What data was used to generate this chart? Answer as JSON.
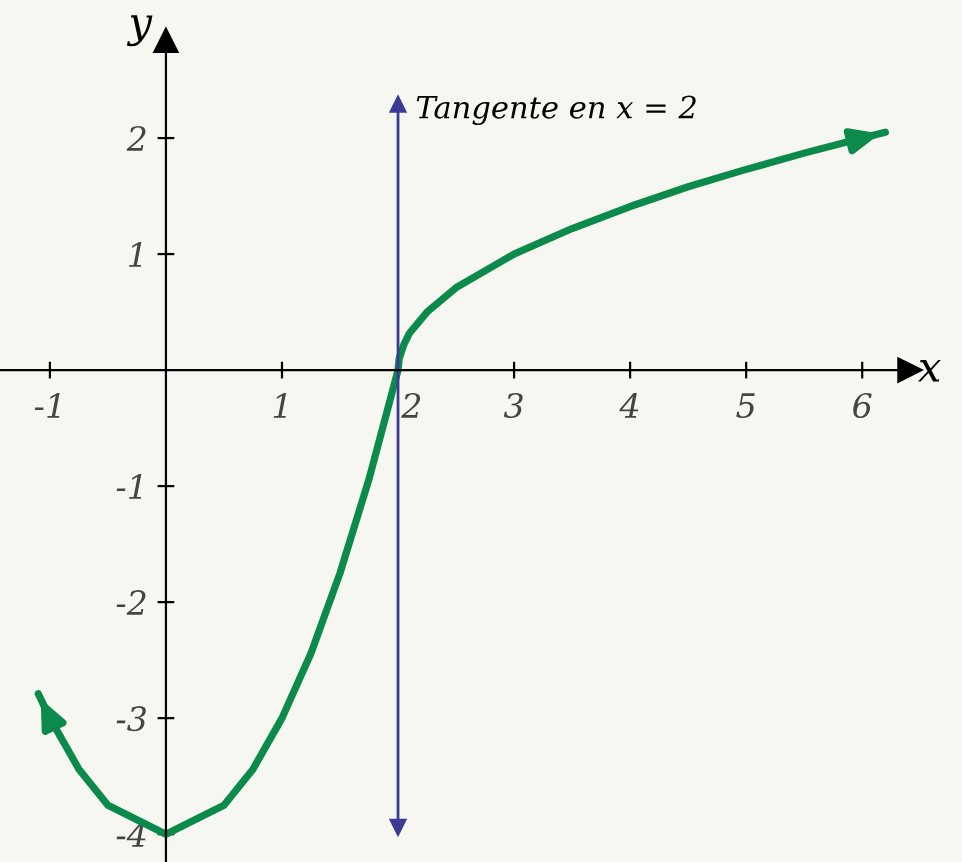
{
  "chart_data": {
    "type": "line",
    "xlabel": "x",
    "ylabel": "y",
    "x": [
      -1.1,
      -1,
      -0.75,
      -0.5,
      0,
      0.5,
      0.75,
      1,
      1.25,
      1.5,
      1.75,
      2,
      2.01,
      2.05,
      2.1,
      2.25,
      2.5,
      3,
      3.5,
      4,
      4.5,
      5,
      5.5,
      6,
      6.2
    ],
    "series": [
      {
        "color": "#0b8a4b",
        "values": [
          -2.79,
          -3,
          -3.44,
          -3.75,
          -4,
          -3.75,
          -3.44,
          -3,
          -2.44,
          -1.75,
          -0.94,
          0,
          0.1,
          0.22,
          0.32,
          0.5,
          0.71,
          1,
          1.22,
          1.41,
          1.58,
          1.73,
          1.87,
          2,
          2.05
        ]
      }
    ],
    "xlim": [
      -1.43,
      6.86
    ],
    "ylim": [
      -4.24,
      3.19
    ],
    "xticks": [
      -1,
      1,
      2,
      3,
      4,
      5,
      6
    ],
    "yticks": [
      -4,
      -3,
      -2,
      -1,
      1,
      2
    ],
    "ref_lines": [
      {
        "axis": "x",
        "value": 2,
        "label": "Tangente en x = 2",
        "color": "#3b3b96"
      }
    ],
    "grid": false,
    "legend": false
  }
}
